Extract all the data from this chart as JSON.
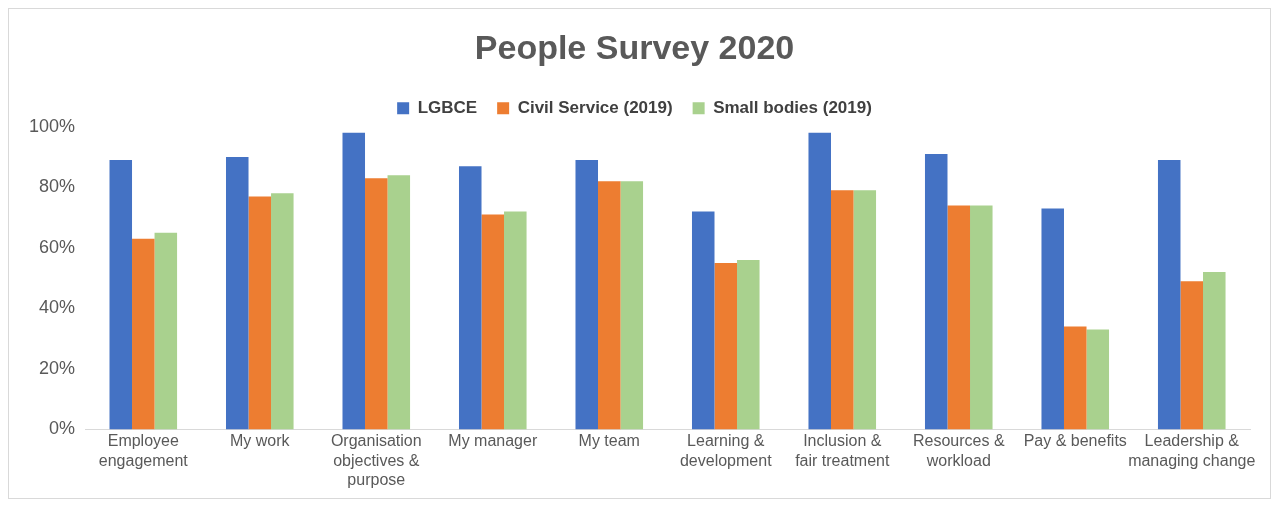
{
  "chart_data": {
    "type": "bar",
    "title": "People Survey 2020",
    "categories": [
      "Employee engagement",
      "My work",
      "Organisation objectives & purpose",
      "My manager",
      "My team",
      "Learning & development",
      "Inclusion & fair treatment",
      "Resources & workload",
      "Pay & benefits",
      "Leadership & managing change"
    ],
    "series": [
      {
        "name": "LGBCE",
        "color": "#4472c4",
        "values": [
          89,
          90,
          98,
          87,
          89,
          72,
          98,
          91,
          73,
          89
        ]
      },
      {
        "name": "Civil Service (2019)",
        "color": "#ed7d31",
        "values": [
          63,
          77,
          83,
          71,
          82,
          55,
          79,
          74,
          34,
          49
        ]
      },
      {
        "name": "Small bodies (2019)",
        "color": "#a9d18e",
        "values": [
          65,
          78,
          84,
          72,
          82,
          56,
          79,
          74,
          33,
          52
        ]
      }
    ],
    "ylim": [
      0,
      100
    ],
    "yticks": [
      {
        "value": 0,
        "label": "0%"
      },
      {
        "value": 20,
        "label": "20%"
      },
      {
        "value": 40,
        "label": "40%"
      },
      {
        "value": 60,
        "label": "60%"
      },
      {
        "value": 80,
        "label": "80%"
      },
      {
        "value": 100,
        "label": "100%"
      }
    ],
    "grid": false,
    "legend": "top"
  }
}
